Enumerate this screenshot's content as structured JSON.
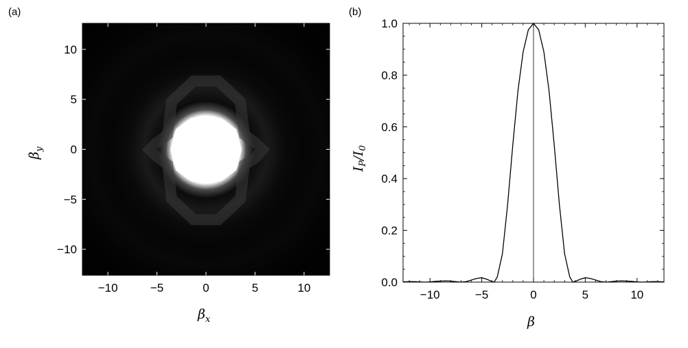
{
  "chart_data": [
    {
      "panel_label": "(a)",
      "type": "heatmap",
      "xlabel": "β",
      "xlabel_sub": "x",
      "ylabel": "β",
      "ylabel_sub": "y",
      "xlim": [
        -12.6,
        12.6
      ],
      "ylim": [
        -12.6,
        12.6
      ],
      "xticks": [
        -10,
        -5,
        0,
        5,
        10
      ],
      "yticks": [
        -10,
        -5,
        0,
        5,
        10
      ],
      "xtick_labels": [
        "−10",
        "−5",
        "0",
        "5",
        "10"
      ],
      "ytick_labels": [
        "−10",
        "−5",
        "0",
        "5",
        "10"
      ],
      "colormap": [
        "#000000",
        "#ffffff"
      ],
      "central_disk": {
        "center": [
          0,
          0
        ],
        "radius": 3.0,
        "value": 1.0
      },
      "side_rings": [
        {
          "radius": 5.4,
          "value": 0.25
        },
        {
          "radius": 8.6,
          "value": 0.07
        }
      ]
    },
    {
      "panel_label": "(b)",
      "type": "line",
      "xlabel": "β",
      "ylabel": "I",
      "ylabel_sub1": "P",
      "ylabel_mid": "/I",
      "ylabel_sub2": "0",
      "xlim": [
        -12.6,
        12.6
      ],
      "ylim": [
        0,
        1.0
      ],
      "xticks": [
        -10,
        -5,
        0,
        5,
        10
      ],
      "yticks": [
        0.0,
        0.2,
        0.4,
        0.6,
        0.8,
        1.0
      ],
      "xtick_labels": [
        "−10",
        "−5",
        "0",
        "5",
        "10"
      ],
      "ytick_labels": [
        "0.0",
        "0.2",
        "0.4",
        "0.6",
        "0.8",
        "1.0"
      ],
      "reference_line_x": 0,
      "series": [
        {
          "x": [
            -12.6,
            -12,
            -11.5,
            -11,
            -10.5,
            -10,
            -9.5,
            -9,
            -8.5,
            -8,
            -7.5,
            -7,
            -6.5,
            -6,
            -5.5,
            -5,
            -4.5,
            -4,
            -3.8,
            -3.5,
            -3,
            -2.5,
            -2,
            -1.5,
            -1,
            -0.5,
            0,
            0.5,
            1,
            1.5,
            2,
            2.5,
            3,
            3.5,
            3.8,
            4,
            4.5,
            5,
            5.5,
            6,
            6.5,
            7,
            7.5,
            8,
            8.5,
            9,
            9.5,
            10,
            10.5,
            11,
            11.5,
            12,
            12.6
          ],
          "y": [
            0.001,
            0.002,
            0.002,
            0.001,
            0.0,
            0.001,
            0.003,
            0.004,
            0.005,
            0.004,
            0.002,
            0.0,
            0.002,
            0.008,
            0.014,
            0.017,
            0.011,
            0.002,
            0.0,
            0.02,
            0.11,
            0.3,
            0.53,
            0.74,
            0.89,
            0.975,
            1.0,
            0.975,
            0.89,
            0.74,
            0.53,
            0.3,
            0.11,
            0.02,
            0.0,
            0.002,
            0.011,
            0.017,
            0.014,
            0.008,
            0.002,
            0.0,
            0.002,
            0.004,
            0.005,
            0.004,
            0.003,
            0.001,
            0.0,
            0.001,
            0.002,
            0.002,
            0.001
          ]
        }
      ]
    }
  ]
}
